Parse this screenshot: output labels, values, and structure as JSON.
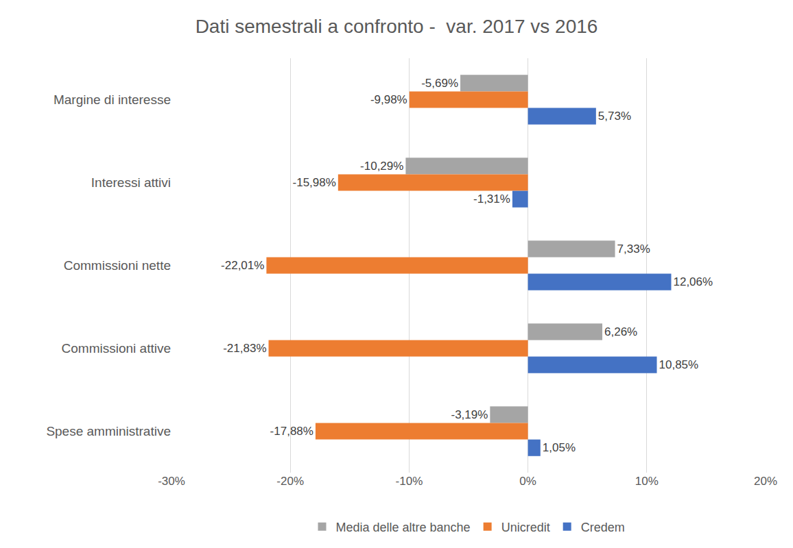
{
  "chart_data": {
    "type": "bar",
    "title": "Dati semestrali a confronto -  var. 2017 vs 2016",
    "orientation": "horizontal",
    "categories": [
      "Margine di interesse",
      "Interessi attivi",
      "Commissioni nette",
      "Commissioni attive",
      "Spese amministrative"
    ],
    "series": [
      {
        "name": "Media delle altre banche",
        "color": "#a5a5a5",
        "values": [
          -5.69,
          -10.29,
          7.33,
          6.26,
          -3.19
        ],
        "value_labels": [
          "-5,69%",
          "-10,29%",
          "7,33%",
          "6,26%",
          "-3,19%"
        ]
      },
      {
        "name": "Unicredit",
        "color": "#ed7d31",
        "values": [
          -9.98,
          -15.98,
          -22.01,
          -21.83,
          -17.88
        ],
        "value_labels": [
          "-9,98%",
          "-15,98%",
          "-22,01%",
          "-21,83%",
          "-17,88%"
        ]
      },
      {
        "name": "Credem",
        "color": "#4472c4",
        "values": [
          5.73,
          -1.31,
          12.06,
          10.85,
          1.05
        ],
        "value_labels": [
          "5,73%",
          "-1,31%",
          "12,06%",
          "10,85%",
          "1,05%"
        ]
      }
    ],
    "xlim": [
      -30,
      20
    ],
    "xticks": [
      {
        "value": -30,
        "label": "-30%"
      },
      {
        "value": -20,
        "label": "-20%"
      },
      {
        "value": -10,
        "label": "-10%"
      },
      {
        "value": 0,
        "label": "0%"
      },
      {
        "value": 10,
        "label": "10%"
      },
      {
        "value": 20,
        "label": "20%"
      }
    ],
    "grid": true,
    "data_labels": true,
    "legend": "bottom"
  }
}
